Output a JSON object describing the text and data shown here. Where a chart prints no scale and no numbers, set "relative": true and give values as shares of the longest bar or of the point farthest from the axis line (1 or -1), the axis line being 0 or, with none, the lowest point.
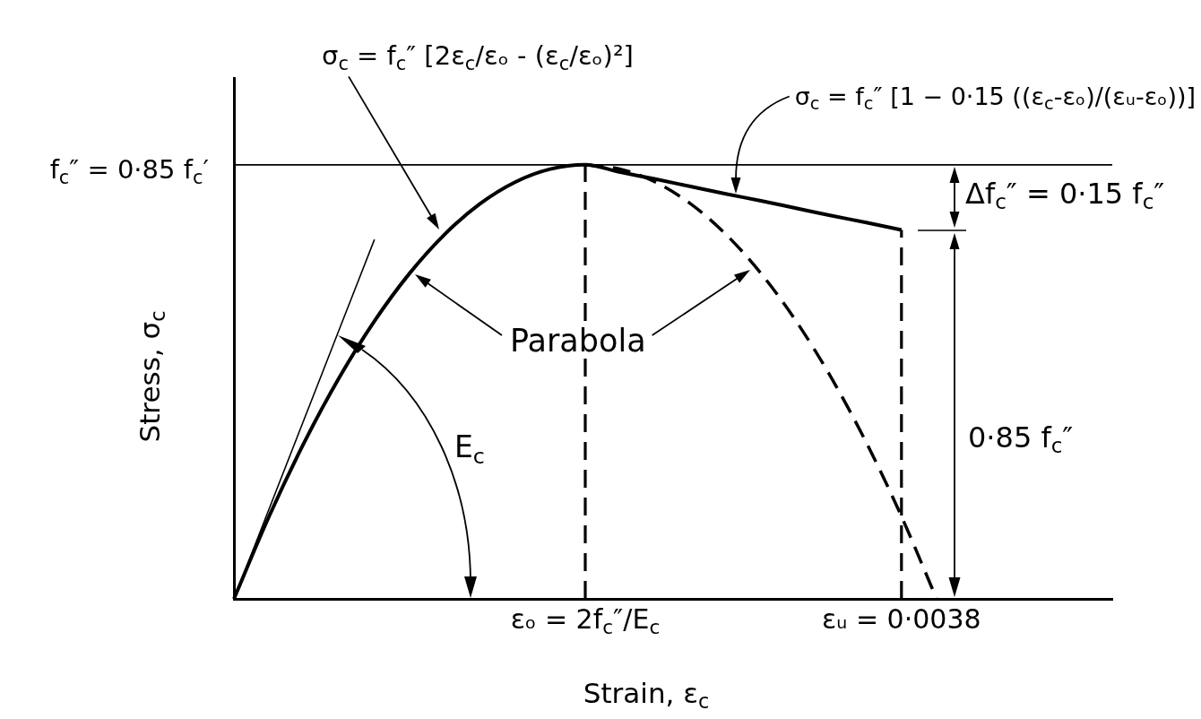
{
  "chart_data": {
    "type": "line",
    "relative": true,
    "xlabel": "Strain, ε$_{c}$",
    "ylabel": "Stress, σ$_{c}$",
    "categories": [
      null,
      null,
      null,
      null,
      null,
      null,
      null,
      null,
      null,
      null,
      "εₒ = 2f$_{c}$″/E$_{c}$",
      null,
      null,
      null,
      null,
      null,
      null,
      null,
      null,
      "εᵤ = 0·0038",
      null,
      null,
      null,
      null,
      null,
      null
    ],
    "series": [
      {
        "values": [
          0,
          0.19,
          0.36,
          0.51,
          0.64,
          0.75,
          0.84,
          0.91,
          0.96,
          0.99,
          1,
          0.983,
          0.967,
          0.95,
          0.933,
          0.917,
          0.9,
          0.883,
          0.867,
          0.85,
          null,
          null,
          null,
          null,
          null,
          null
        ],
        "color": "#000000",
        "line_style": "solid"
      },
      {
        "values": [
          null,
          null,
          null,
          null,
          null,
          null,
          null,
          null,
          null,
          null,
          1,
          0.99,
          0.96,
          0.91,
          0.84,
          0.75,
          0.64,
          0.51,
          0.36,
          0.19,
          0,
          null,
          null,
          null,
          null,
          null
        ],
        "color": "#000000",
        "line_style": "dashed"
      },
      {
        "values": [
          0,
          0.207,
          0.414,
          0.621,
          0.828,
          null,
          null,
          null,
          null,
          null,
          null,
          null,
          null,
          null,
          null,
          null,
          null,
          null,
          null,
          null,
          null,
          null,
          null,
          null,
          null,
          null
        ],
        "color": "#000000",
        "line_style": "solid"
      }
    ],
    "ref_lines": [
      {
        "axis": "y",
        "value": 1
      },
      {
        "axis": "x",
        "value": "εₒ = 2f$_{c}$″/E$_{c}$",
        "line_style": "dashed"
      },
      {
        "axis": "x",
        "value": "εᵤ = 0·0038",
        "line_style": "dashed"
      }
    ],
    "annotations": [
      "σ$_{c}$ = f$_{c}$″ [2ε$_{c}$/εₒ - (ε$_{c}$/εₒ)²]",
      "σ$_{c}$ = f$_{c}$″ [1 − 0·15 ((ε$_{c}$-εₒ)/(εᵤ-εₒ))]",
      "f$_{c}$″ = 0·85 f$_{c}$′",
      "Δf$_{c}$″ = 0·15 f$_{c}$″",
      "Parabola",
      "E$_{c}$",
      "0·85 f$_{c}$″"
    ]
  }
}
